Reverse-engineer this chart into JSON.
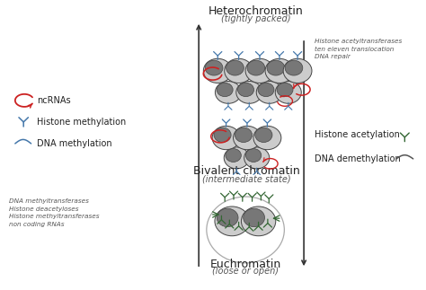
{
  "title_hetero": "Heterochromatin",
  "subtitle_hetero": "(tightly packed)",
  "title_bivalent": "Bivalent chromatin",
  "subtitle_bivalent": "(intermediate state)",
  "title_eu": "Euchromatin",
  "subtitle_eu": "(loose or open)",
  "legend_ncrna": "ncRNAs",
  "legend_histone_meth": "Histone methylation",
  "legend_dna_meth": "DNA methylation",
  "bottom_left_text": "DNA methyltransferases\nHistone deacetyloses\nHistone methyltransferases\nnon coding RNAs",
  "top_right_text": "Histone acetyltransferases\nten eleven translocation\nDNA repair",
  "right_histone_ac": "Histone acetylation",
  "right_dna_demeth": "DNA demethylation",
  "bg_color": "#ffffff",
  "red_color": "#cc2222",
  "blue_color": "#4477aa",
  "green_color": "#336633",
  "arrow_color": "#333333",
  "text_color": "#222222",
  "italic_color": "#555555",
  "nuc_face": "#cccccc",
  "nuc_dark_face": "#777777",
  "nuc_edge": "#444444"
}
